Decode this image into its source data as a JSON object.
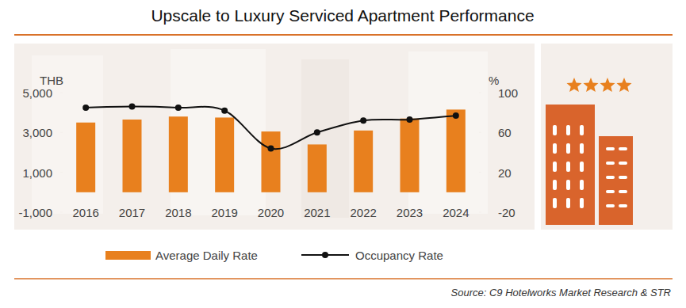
{
  "chart_data": {
    "type": "bar",
    "title": "Upscale to Luxury Serviced Apartment Performance",
    "y_label": "THB",
    "y2_label": "%",
    "source": "Source: C9 Hotelworks Market Research & STR",
    "categories": [
      "2016",
      "2017",
      "2018",
      "2019",
      "2020",
      "2021",
      "2022",
      "2023",
      "2024"
    ],
    "series": [
      {
        "name": "Average Daily Rate",
        "type": "bar",
        "color": "#e8801e",
        "values": [
          3500,
          3650,
          3800,
          3750,
          3050,
          2400,
          3100,
          3700,
          4150
        ]
      },
      {
        "name": "Occupancy Rate",
        "type": "line",
        "color": "#111111",
        "marker": "circle",
        "axis": "y2",
        "values": [
          85,
          86,
          85,
          82,
          44,
          60,
          72,
          73,
          77
        ]
      }
    ],
    "ylim": [
      -1000,
      5000
    ],
    "yticks": [
      {
        "value": -1000,
        "label": "-1,000"
      },
      {
        "value": 1000,
        "label": "1,000"
      },
      {
        "value": 3000,
        "label": "3,000"
      },
      {
        "value": 5000,
        "label": "5,000"
      }
    ],
    "y2lim": [
      -20,
      100
    ],
    "y2ticks": [
      -20,
      20,
      60,
      100
    ],
    "legend": "bottom",
    "grid": false
  }
}
